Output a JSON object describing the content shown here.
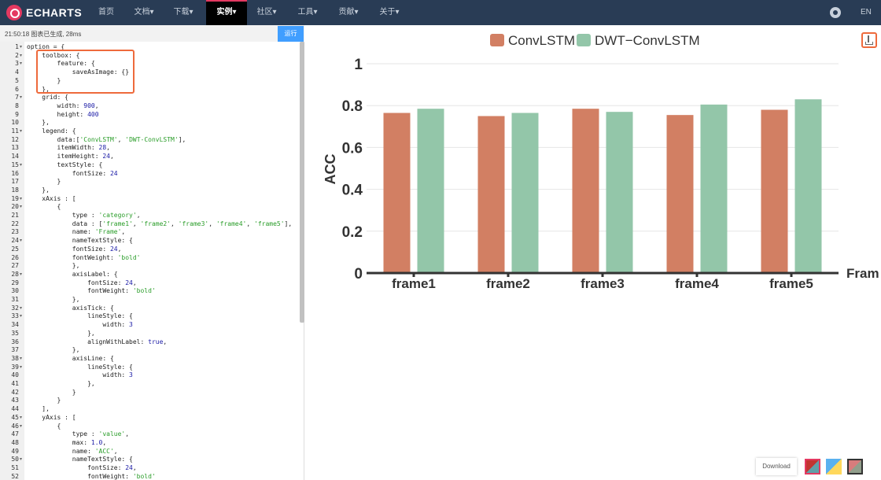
{
  "brand": {
    "name": "ECHARTS"
  },
  "nav": {
    "items": [
      "首页",
      "文档▾",
      "下载▾",
      "实例▾",
      "社区▾",
      "工具▾",
      "贡献▾",
      "关于▾"
    ],
    "lang": "EN"
  },
  "editor": {
    "status": "21:50:18   图表已生成, 28ms",
    "run_label": "运行",
    "lines": [
      "option = {",
      "    toolbox: {",
      "        feature: {",
      "            saveAsImage: {}",
      "        }",
      "    },",
      "    grid: {",
      "        width: 900,",
      "        height: 400",
      "    },",
      "    legend: {",
      "        data:['ConvLSTM', 'DWT-ConvLSTM'],",
      "        itemWidth: 28,",
      "        itemHeight: 24,",
      "        textStyle: {",
      "            fontSize: 24",
      "        }",
      "    },",
      "    xAxis : [",
      "        {",
      "            type : 'category',",
      "            data : ['frame1', 'frame2', 'frame3', 'frame4', 'frame5'],",
      "            name: 'Frame',",
      "            nameTextStyle: {",
      "            fontSize: 24,",
      "            fontWeight: 'bold'",
      "            },",
      "            axisLabel: {",
      "                fontSize: 24,",
      "                fontWeight: 'bold'",
      "            },",
      "            axisTick: {",
      "                lineStyle: {",
      "                    width: 3",
      "                },",
      "                alignWithLabel: true,",
      "            },",
      "            axisLine: {",
      "                lineStyle: {",
      "                    width: 3",
      "                },",
      "            }",
      "        }",
      "    ],",
      "    yAxis : [",
      "        {",
      "            type : 'value',",
      "            max: 1.0,",
      "            name: 'ACC',",
      "            nameTextStyle: {",
      "                fontSize: 24,",
      "                fontWeight: 'bold'"
    ],
    "folds": [
      1,
      2,
      3,
      7,
      11,
      15,
      19,
      20,
      24,
      28,
      32,
      33,
      38,
      39,
      45,
      46,
      50
    ]
  },
  "chart_data": {
    "type": "bar",
    "categories": [
      "frame1",
      "frame2",
      "frame3",
      "frame4",
      "frame5"
    ],
    "series": [
      {
        "name": "ConvLSTM",
        "color": "#d27f63",
        "values": [
          0.765,
          0.75,
          0.785,
          0.755,
          0.78
        ]
      },
      {
        "name": "DWT−ConvLSTM",
        "color": "#93c6a9",
        "values": [
          0.785,
          0.765,
          0.77,
          0.805,
          0.83
        ]
      }
    ],
    "xlabel": "Fram",
    "ylabel": "ACC",
    "ylim": [
      0,
      1
    ],
    "yticks": [
      "0",
      "0.2",
      "0.4",
      "0.6",
      "0.8",
      "1"
    ],
    "grid": true,
    "legend_position": "top-center"
  },
  "footer": {
    "download_label": "Download"
  }
}
